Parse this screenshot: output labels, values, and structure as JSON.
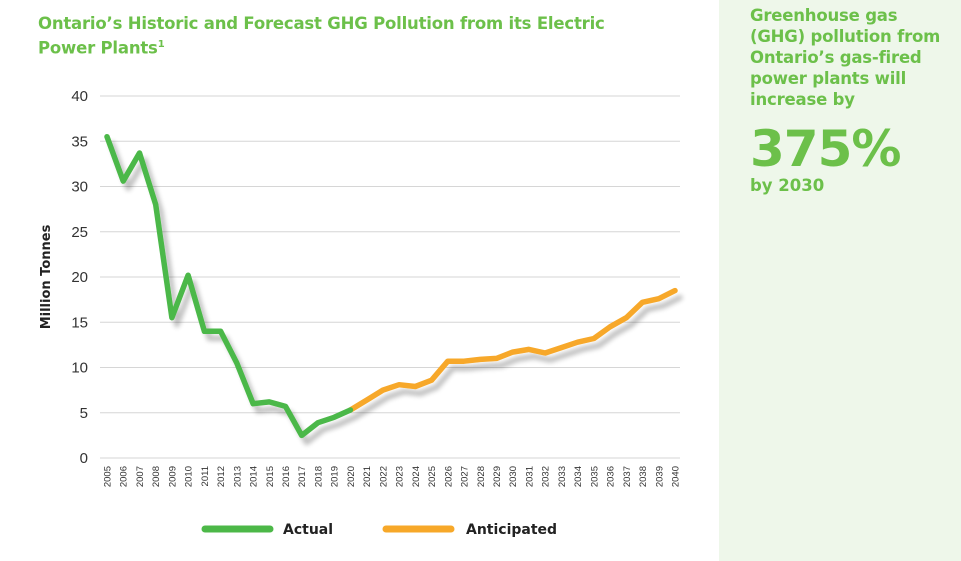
{
  "title": "Ontario’s Historic and Forecast GHG Pollution from its Electric Power Plants",
  "title_footnote": "1",
  "side_panel": {
    "text": "Greenhouse gas (GHG) pollution from Ontario’s gas-fired power plants will increase by",
    "stat": "375%",
    "subtext": "by 2030"
  },
  "colors": {
    "actual": "#4cb848",
    "anticipated": "#f7a829",
    "title_green": "#6cc04a",
    "panel_bg": "#eef7ea"
  },
  "chart_data": {
    "type": "line",
    "ylabel": "Million Tonnes",
    "xlabel": "",
    "ylim": [
      0,
      40
    ],
    "yticks": [
      0,
      5,
      10,
      15,
      20,
      25,
      30,
      35,
      40
    ],
    "grid": true,
    "legend_position": "bottom",
    "x": [
      "2005",
      "2006",
      "2007",
      "2008",
      "2009",
      "2010",
      "2011",
      "2012",
      "2013",
      "2014",
      "2015",
      "2016",
      "2017",
      "2018",
      "2019",
      "2020",
      "2021",
      "2022",
      "2023",
      "2024",
      "2025",
      "2026",
      "2027",
      "2028",
      "2029",
      "2030",
      "2031",
      "2032",
      "2033",
      "2034",
      "2035",
      "2036",
      "2037",
      "2038",
      "2039",
      "2040"
    ],
    "series": [
      {
        "name": "Actual",
        "x": [
          "2005",
          "2006",
          "2007",
          "2008",
          "2009",
          "2010",
          "2011",
          "2012",
          "2013",
          "2014",
          "2015",
          "2016",
          "2017",
          "2018",
          "2019",
          "2020"
        ],
        "values": [
          35.5,
          30.6,
          33.7,
          28.0,
          15.5,
          20.2,
          14.0,
          14.0,
          10.5,
          6.0,
          6.2,
          5.7,
          2.5,
          3.9,
          4.5,
          5.3
        ]
      },
      {
        "name": "Anticipated",
        "x": [
          "2020",
          "2021",
          "2022",
          "2023",
          "2024",
          "2025",
          "2026",
          "2027",
          "2028",
          "2029",
          "2030",
          "2031",
          "2032",
          "2033",
          "2034",
          "2035",
          "2036",
          "2037",
          "2038",
          "2039",
          "2040"
        ],
        "values": [
          5.3,
          6.4,
          7.5,
          8.1,
          7.9,
          8.6,
          10.7,
          10.7,
          10.9,
          11.0,
          11.7,
          12.0,
          11.6,
          12.2,
          12.8,
          13.2,
          14.5,
          15.5,
          17.2,
          17.6,
          18.5
        ]
      }
    ]
  }
}
